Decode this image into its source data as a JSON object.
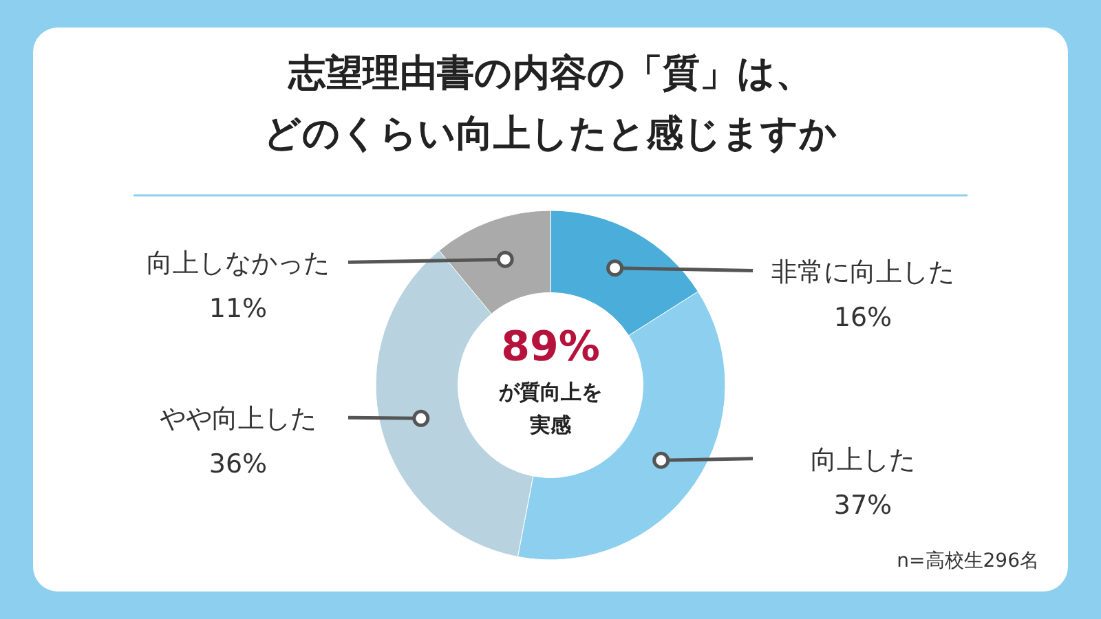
{
  "chart_data": {
    "type": "donut",
    "title": "志望理由書の内容の「質」は、",
    "subtitle": "どのくらい向上したと感じますか",
    "categories": [
      "非常に向上した",
      "向上した",
      "やや向上した",
      "向上しなかった"
    ],
    "values": [
      16,
      37,
      36,
      11
    ],
    "value_labels": [
      "16%",
      "37%",
      "36%",
      "11%"
    ],
    "colors": [
      "#4badda",
      "#8dcfee",
      "#b8d3df",
      "#aaaaaa"
    ],
    "annotations": [
      "89%",
      "が質向上を",
      "実感",
      "n=高校生296名"
    ]
  }
}
